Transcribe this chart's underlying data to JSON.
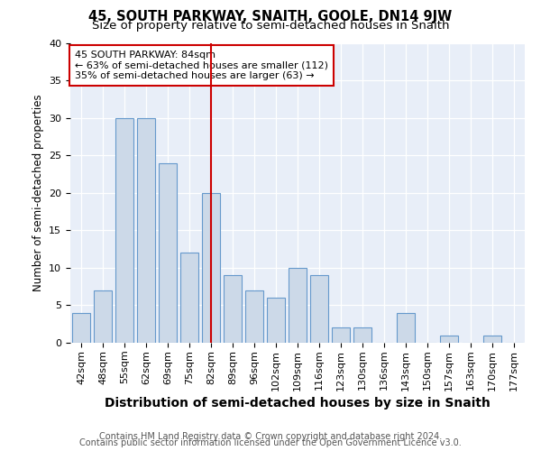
{
  "title": "45, SOUTH PARKWAY, SNAITH, GOOLE, DN14 9JW",
  "subtitle": "Size of property relative to semi-detached houses in Snaith",
  "xlabel": "Distribution of semi-detached houses by size in Snaith",
  "ylabel": "Number of semi-detached properties",
  "categories": [
    "42sqm",
    "48sqm",
    "55sqm",
    "62sqm",
    "69sqm",
    "75sqm",
    "82sqm",
    "89sqm",
    "96sqm",
    "102sqm",
    "109sqm",
    "116sqm",
    "123sqm",
    "130sqm",
    "136sqm",
    "143sqm",
    "150sqm",
    "157sqm",
    "163sqm",
    "170sqm",
    "177sqm"
  ],
  "values": [
    4,
    7,
    30,
    30,
    24,
    12,
    20,
    9,
    7,
    6,
    10,
    9,
    2,
    2,
    0,
    4,
    0,
    1,
    0,
    1,
    0
  ],
  "bar_color": "#ccd9e8",
  "bar_edge_color": "#6699cc",
  "vline_index": 6,
  "vline_color": "#cc0000",
  "annotation_line1": "45 SOUTH PARKWAY: 84sqm",
  "annotation_line2": "← 63% of semi-detached houses are smaller (112)",
  "annotation_line3": "35% of semi-detached houses are larger (63) →",
  "annotation_box_color": "#ffffff",
  "annotation_box_edge": "#cc0000",
  "ylim": [
    0,
    40
  ],
  "yticks": [
    0,
    5,
    10,
    15,
    20,
    25,
    30,
    35,
    40
  ],
  "footer1": "Contains HM Land Registry data © Crown copyright and database right 2024.",
  "footer2": "Contains public sector information licensed under the Open Government Licence v3.0.",
  "plot_bg_color": "#e8eef8",
  "title_fontsize": 10.5,
  "subtitle_fontsize": 9.5,
  "xlabel_fontsize": 10,
  "ylabel_fontsize": 8.5,
  "tick_fontsize": 8,
  "annotation_fontsize": 8,
  "footer_fontsize": 7
}
